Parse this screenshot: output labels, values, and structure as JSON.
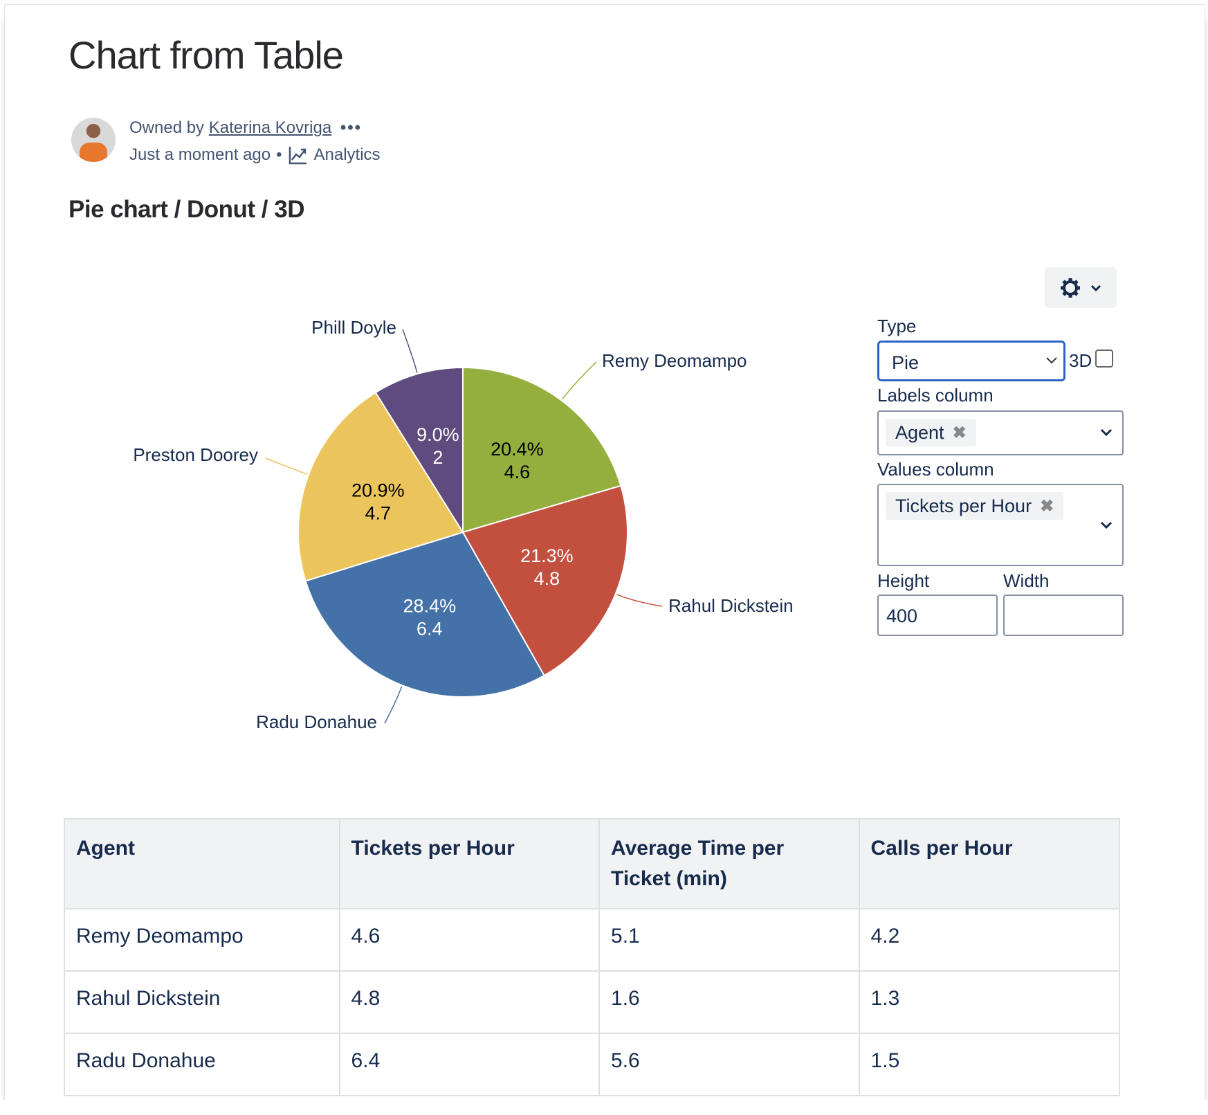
{
  "page": {
    "title": "Chart from Table",
    "owner_prefix": "Owned by",
    "owner_name": "Katerina Kovriga",
    "more_icon": "more-horizontal-icon",
    "timestamp": "Just a moment ago",
    "separator": "•",
    "analytics_label": "Analytics",
    "section_heading": "Pie chart / Donut / 3D"
  },
  "settings": {
    "gear_icon": "gear-icon",
    "type_label": "Type",
    "type_value": "Pie",
    "three_d_label": "3D",
    "three_d_checked": false,
    "labels_column_label": "Labels column",
    "labels_column_value": "Agent",
    "values_column_label": "Values column",
    "values_column_value": "Tickets per Hour",
    "height_label": "Height",
    "height_value": "400",
    "width_label": "Width",
    "width_value": ""
  },
  "chart_data": {
    "type": "pie",
    "categories": [
      "Remy Deomampo",
      "Rahul Dickstein",
      "Radu Donahue",
      "Preston Doorey",
      "Phill Doyle"
    ],
    "values": [
      4.6,
      4.8,
      6.4,
      4.7,
      2
    ],
    "value_labels": [
      "4.6",
      "4.8",
      "6.4",
      "4.7",
      "2"
    ],
    "percent_labels": [
      "20.4%",
      "21.3%",
      "28.4%",
      "20.9%",
      "9.0%"
    ],
    "colors": [
      "#94af3e",
      "#c34f3f",
      "#4472a8",
      "#ecc45c",
      "#604b7e"
    ],
    "label_text_colors": [
      "#000000",
      "#ffffff",
      "#ffffff",
      "#000000",
      "#ffffff"
    ],
    "start_angle": "top, clockwise",
    "legend": "none"
  },
  "table": {
    "headers": [
      "Agent",
      "Tickets per Hour",
      "Average Time per Ticket (min)",
      "Calls per Hour"
    ],
    "rows": [
      [
        "Remy Deomampo",
        "4.6",
        "5.1",
        "4.2"
      ],
      [
        "Rahul Dickstein",
        "4.8",
        "1.6",
        "1.3"
      ],
      [
        "Radu Donahue",
        "6.4",
        "5.6",
        "1.5"
      ]
    ]
  }
}
